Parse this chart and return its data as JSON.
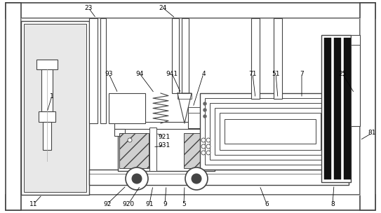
{
  "fig_width": 5.43,
  "fig_height": 3.04,
  "dpi": 100,
  "bg_color": "#ffffff",
  "lc": "#444444",
  "lg": "#aaaaaa",
  "fg": "#cccccc",
  "dg": "#666666"
}
